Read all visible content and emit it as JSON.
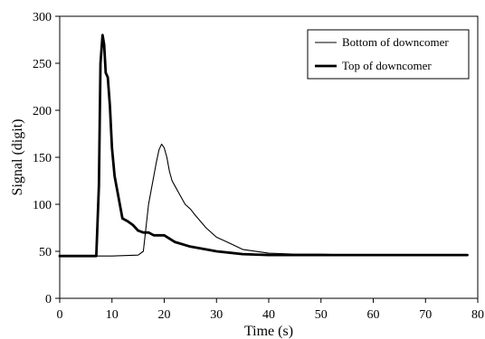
{
  "chart_data": {
    "type": "line",
    "title": "",
    "xlabel": "Time (s)",
    "ylabel": "Signal (digit)",
    "xlim": [
      0,
      80
    ],
    "ylim": [
      0,
      300
    ],
    "x_ticks": [
      0,
      10,
      20,
      30,
      40,
      50,
      60,
      70,
      80
    ],
    "y_ticks": [
      0,
      50,
      100,
      150,
      200,
      250,
      300
    ],
    "grid": false,
    "legend_position": "top-right",
    "series": [
      {
        "name": "Bottom of downcomer",
        "line_width": "thin",
        "color": "#000000",
        "x": [
          0,
          5,
          10,
          15,
          16,
          16.5,
          17,
          17.5,
          18,
          18.5,
          19,
          19.5,
          20,
          20.5,
          21,
          21.5,
          22,
          23,
          24,
          25,
          26,
          28,
          30,
          32,
          35,
          40,
          45,
          50,
          55,
          60,
          65,
          70,
          75,
          78
        ],
        "y": [
          45,
          45,
          45,
          46,
          50,
          75,
          100,
          115,
          130,
          145,
          158,
          164,
          160,
          150,
          135,
          125,
          120,
          110,
          100,
          95,
          88,
          75,
          65,
          60,
          52,
          48,
          47,
          47,
          46,
          46,
          46,
          46,
          46,
          46
        ]
      },
      {
        "name": "Top of downcomer",
        "line_width": "thick",
        "color": "#000000",
        "x": [
          0,
          5,
          7,
          7.5,
          7.8,
          8.2,
          8.5,
          8.8,
          9.2,
          9.6,
          10,
          10.5,
          11,
          11.5,
          12,
          13,
          14,
          15,
          16,
          17,
          18,
          20,
          22,
          25,
          28,
          30,
          35,
          40,
          50,
          60,
          70,
          78
        ],
        "y": [
          45,
          45,
          45,
          120,
          250,
          280,
          270,
          240,
          235,
          205,
          160,
          130,
          115,
          100,
          85,
          82,
          78,
          72,
          70,
          70,
          67,
          67,
          60,
          55,
          52,
          50,
          47,
          46,
          46,
          46,
          46,
          46
        ]
      }
    ]
  }
}
